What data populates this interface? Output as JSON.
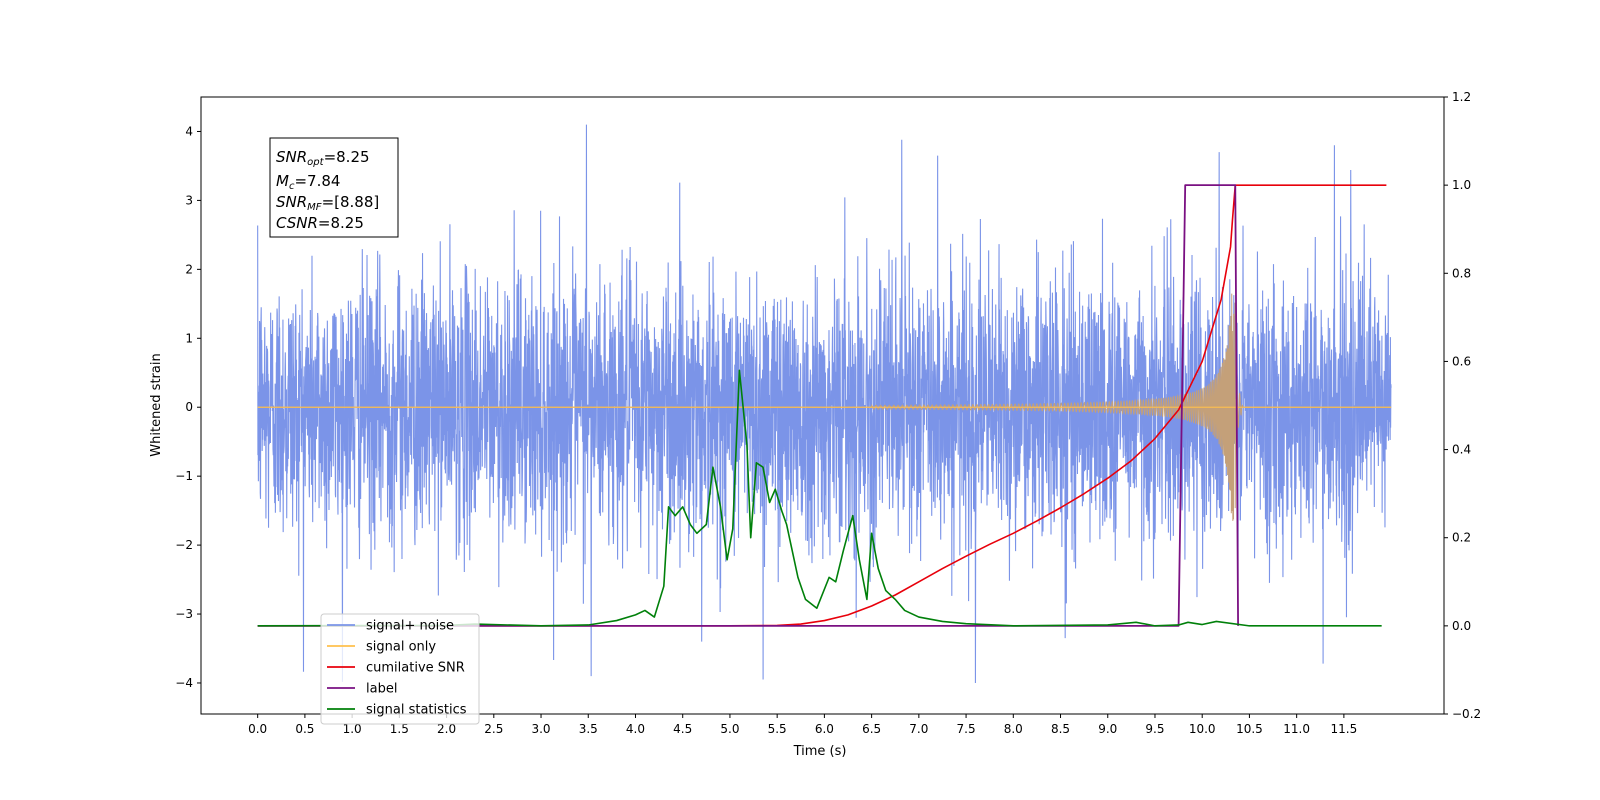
{
  "chart_data": {
    "type": "line",
    "xlabel": "Time (s)",
    "ylabel": "Whitened strain",
    "xlim": [
      -0.6,
      12.56
    ],
    "ylim_left": [
      -4.45,
      4.5
    ],
    "ylim_right": [
      -0.2,
      1.2
    ],
    "x_ticks": [
      0.0,
      0.5,
      1.0,
      1.5,
      2.0,
      2.5,
      3.0,
      3.5,
      4.0,
      4.5,
      5.0,
      5.5,
      6.0,
      6.5,
      7.0,
      7.5,
      8.0,
      8.5,
      9.0,
      9.5,
      10.0,
      10.5,
      11.0,
      11.5
    ],
    "x_tick_labels": [
      "0.0",
      "0.5",
      "1.0",
      "1.5",
      "2.0",
      "2.5",
      "3.0",
      "3.5",
      "4.0",
      "4.5",
      "5.0",
      "5.5",
      "6.0",
      "6.5",
      "7.0",
      "7.5",
      "8.0",
      "8.5",
      "9.0",
      "9.5",
      "10.0",
      "10.5",
      "11.0",
      "11.5"
    ],
    "y_left_ticks": [
      4,
      3,
      2,
      1,
      0,
      -1,
      -2,
      -3,
      -4
    ],
    "y_left_tick_labels": [
      "4",
      "3",
      "2",
      "1",
      "0",
      "−1",
      "−2",
      "−3",
      "−4"
    ],
    "y_right_ticks": [
      1.2,
      1.0,
      0.8,
      0.6,
      0.4,
      0.2,
      0.0,
      -0.2
    ],
    "y_right_tick_labels": [
      "1.2",
      "1.0",
      "0.8",
      "0.6",
      "0.4",
      "0.2",
      "0.0",
      "−0.2"
    ],
    "grid": false,
    "legend_location": "lower-left",
    "annotation_lines": [
      "SNR_opt=8.25",
      "M_c=7.84",
      "SNR_MF=[8.88]",
      "CSNR=8.25"
    ],
    "annotation": {
      "snr_opt_base": "SNR",
      "snr_opt_sub": "opt",
      "snr_opt_value": "=8.25",
      "mc_base": "M",
      "mc_sub": "c",
      "mc_value": "=7.84",
      "snr_mf_base": "SNR",
      "snr_mf_sub": "MF",
      "snr_mf_value": "=[8.88]",
      "csnr_base": "CSNR",
      "csnr_value": "=8.25"
    },
    "series": [
      {
        "name": "signal+ noise",
        "axis": "left",
        "color": "#7b94e8",
        "x_range": [
          0.0,
          12.0
        ],
        "amplitude_range": [
          -4.0,
          4.1
        ],
        "peaks": [
          {
            "x": 3.48,
            "y": 4.12
          },
          {
            "x": 6.82,
            "y": 3.88
          },
          {
            "x": 11.4,
            "y": 3.8
          },
          {
            "x": 7.2,
            "y": 3.65
          },
          {
            "x": 10.18,
            "y": 3.7
          },
          {
            "x": 3.53,
            "y": -3.9
          },
          {
            "x": 5.35,
            "y": -3.95
          },
          {
            "x": 7.6,
            "y": -4.05
          },
          {
            "x": 11.28,
            "y": -3.72
          },
          {
            "x": 4.7,
            "y": -3.4
          },
          {
            "x": 8.55,
            "y": -3.35
          }
        ]
      },
      {
        "name": "signal only",
        "axis": "left",
        "color": "#ffc04d",
        "x_range": [
          0.0,
          12.0
        ],
        "merger_time": 10.35,
        "peak_amplitude": 1.65
      },
      {
        "name": "cumilative SNR",
        "axis": "right",
        "color": "#e8000b",
        "x": [
          0.0,
          5.0,
          5.5,
          5.75,
          6.0,
          6.25,
          6.5,
          6.75,
          7.0,
          7.25,
          7.5,
          7.75,
          8.0,
          8.25,
          8.5,
          8.75,
          9.0,
          9.25,
          9.5,
          9.75,
          10.0,
          10.2,
          10.3,
          10.32,
          10.35,
          11.95
        ],
        "values": [
          0.0,
          0.0,
          0.001,
          0.004,
          0.012,
          0.025,
          0.045,
          0.07,
          0.1,
          0.13,
          0.158,
          0.185,
          0.21,
          0.238,
          0.268,
          0.3,
          0.335,
          0.375,
          0.425,
          0.49,
          0.6,
          0.74,
          0.86,
          0.92,
          1.0,
          1.0
        ]
      },
      {
        "name": "label",
        "axis": "right",
        "color": "#7a1082",
        "x": [
          0.0,
          9.75,
          9.82,
          10.3,
          10.35,
          10.38
        ],
        "values": [
          0.0,
          0.0,
          1.0,
          1.0,
          1.0,
          0.0
        ]
      },
      {
        "name": "signal statistics",
        "axis": "right",
        "color": "#00800a",
        "x": [
          0.0,
          2.0,
          2.3,
          3.0,
          3.5,
          3.8,
          4.0,
          4.1,
          4.2,
          4.3,
          4.35,
          4.42,
          4.5,
          4.58,
          4.65,
          4.75,
          4.82,
          4.9,
          4.97,
          5.03,
          5.1,
          5.18,
          5.22,
          5.28,
          5.35,
          5.42,
          5.48,
          5.55,
          5.6,
          5.65,
          5.72,
          5.8,
          5.92,
          6.05,
          6.12,
          6.2,
          6.3,
          6.37,
          6.45,
          6.5,
          6.57,
          6.65,
          6.75,
          6.85,
          7.0,
          7.25,
          7.5,
          8.0,
          9.0,
          9.3,
          9.5,
          9.75,
          9.85,
          10.0,
          10.15,
          10.5,
          11.0,
          11.9
        ],
        "values": [
          0.0,
          0.001,
          0.004,
          0.0,
          0.002,
          0.012,
          0.025,
          0.035,
          0.02,
          0.09,
          0.27,
          0.25,
          0.27,
          0.23,
          0.21,
          0.23,
          0.36,
          0.27,
          0.15,
          0.22,
          0.58,
          0.41,
          0.2,
          0.37,
          0.36,
          0.28,
          0.31,
          0.26,
          0.23,
          0.18,
          0.11,
          0.06,
          0.04,
          0.11,
          0.1,
          0.17,
          0.25,
          0.15,
          0.06,
          0.21,
          0.13,
          0.08,
          0.06,
          0.035,
          0.02,
          0.01,
          0.005,
          0.0,
          0.002,
          0.008,
          0.0,
          0.002,
          0.008,
          0.003,
          0.01,
          0.0,
          0.0,
          0.0
        ]
      }
    ]
  }
}
